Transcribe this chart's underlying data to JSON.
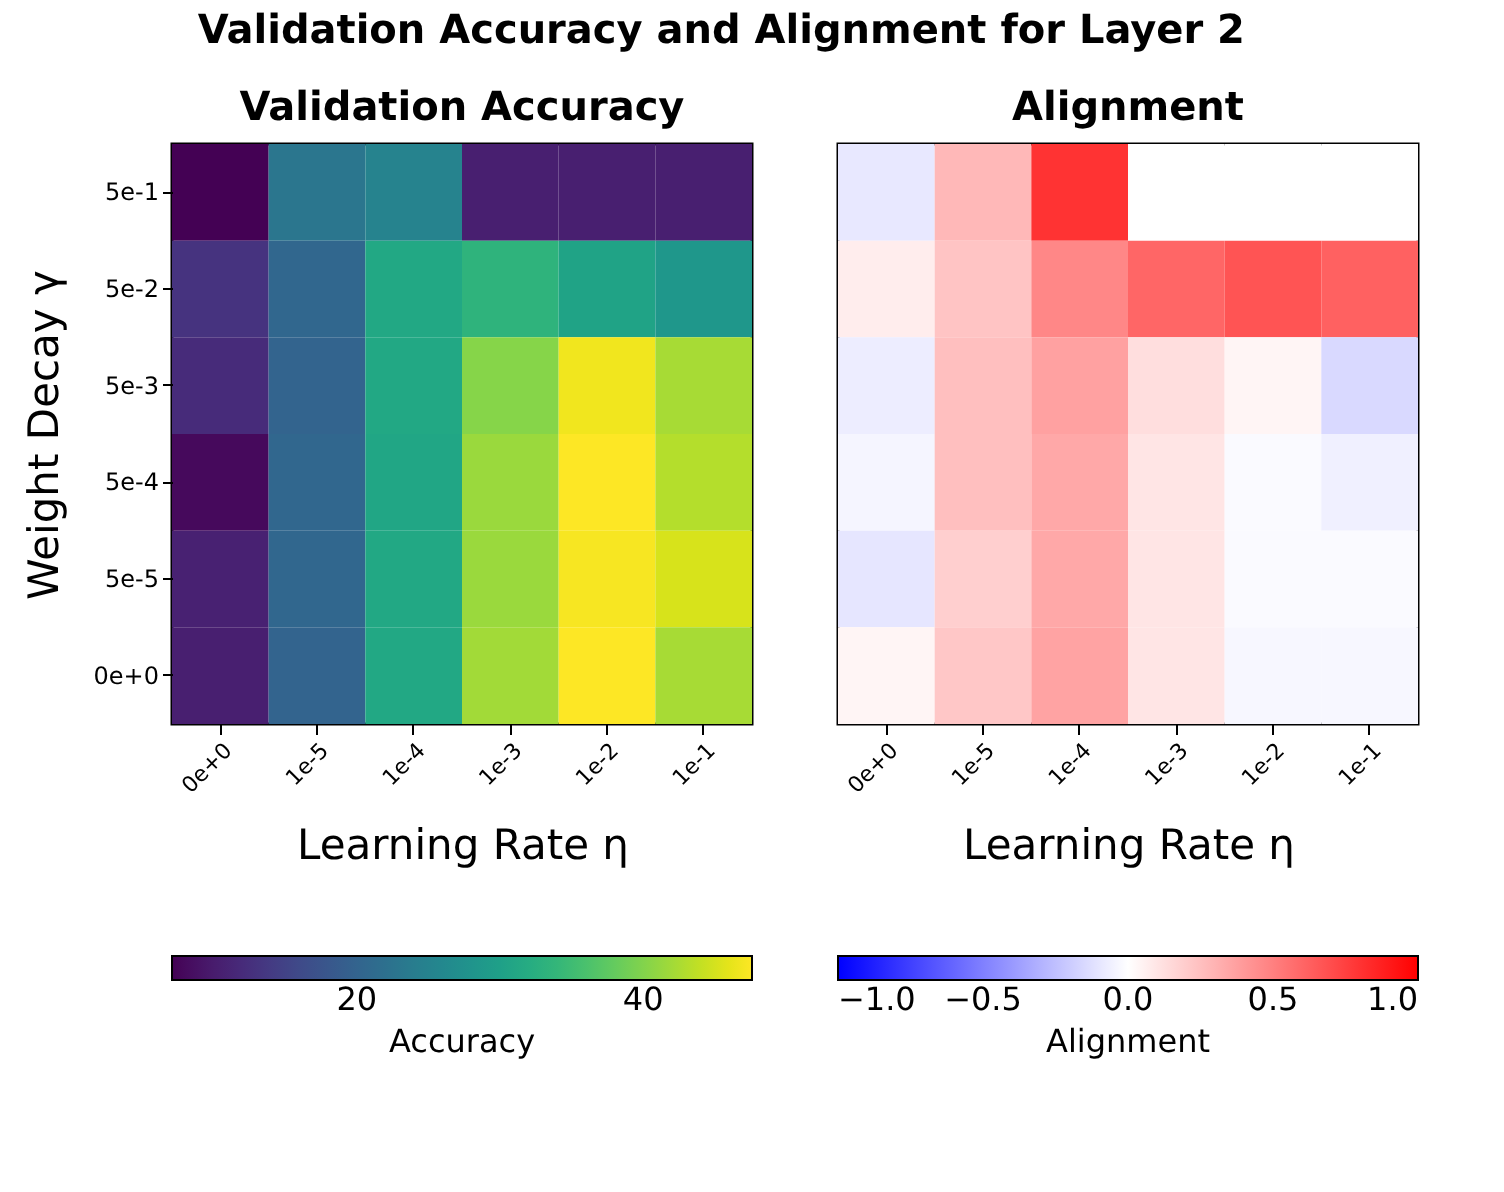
{
  "chart_data": [
    {
      "type": "heatmap",
      "title": "Validation Accuracy",
      "annotations": [
        "Validation Accuracy and Alignment for Layer 2"
      ],
      "xlabel": "Learning Rate η",
      "ylabel": "Weight Decay γ",
      "clabel": "Accuracy",
      "categories": [
        "0e+0",
        "1e-5",
        "1e-4",
        "1e-3",
        "1e-2",
        "1e-1"
      ],
      "y_categories": [
        "5e-1",
        "5e-2",
        "5e-3",
        "5e-4",
        "5e-5",
        "0e+0"
      ],
      "cells": [
        [
          7.1,
          23,
          25,
          10.4,
          10.4,
          10.4
        ],
        [
          13,
          20.5,
          31.4,
          33.4,
          30.6,
          28.6
        ],
        [
          12,
          20,
          31.4,
          40.3,
          46.8,
          42.3
        ],
        [
          7.9,
          20.5,
          31,
          41.5,
          47.6,
          43.1
        ],
        [
          10.7,
          20.5,
          31.4,
          41.5,
          47.2,
          45.2
        ],
        [
          10.4,
          20,
          31.4,
          42,
          47.6,
          42.3
        ]
      ],
      "clim": [
        7.1,
        47.6
      ],
      "cticks": [
        20,
        40
      ]
    },
    {
      "type": "heatmap",
      "title": "Alignment",
      "xlabel": "Learning Rate η",
      "clabel": "Alignment",
      "tick_labels": "x",
      "categories": [
        "0e+0",
        "1e-5",
        "1e-4",
        "1e-3",
        "1e-2",
        "1e-1"
      ],
      "y_categories": [
        "5e-1",
        "5e-2",
        "5e-3",
        "5e-4",
        "5e-5",
        "0e+0"
      ],
      "cells": [
        [
          -0.09,
          0.28,
          0.8,
          0.0,
          0.0,
          0.0
        ],
        [
          0.07,
          0.23,
          0.47,
          0.6,
          0.67,
          0.62
        ],
        [
          -0.07,
          0.25,
          0.37,
          0.13,
          0.04,
          -0.15
        ],
        [
          -0.04,
          0.25,
          0.34,
          0.1,
          -0.02,
          -0.06
        ],
        [
          -0.1,
          0.19,
          0.34,
          0.1,
          -0.02,
          -0.02
        ],
        [
          0.04,
          0.22,
          0.36,
          0.1,
          -0.03,
          -0.03
        ]
      ],
      "clim": [
        -1.0,
        1.0
      ],
      "cticks": [
        {
          "value": -1.0,
          "label": "−1.0"
        },
        {
          "value": -0.5,
          "label": "−0.5"
        },
        {
          "value": 0.0,
          "label": "0.0"
        },
        {
          "value": 0.5,
          "label": "0.5"
        },
        {
          "value": 1.0,
          "label": "1.0"
        }
      ]
    }
  ]
}
